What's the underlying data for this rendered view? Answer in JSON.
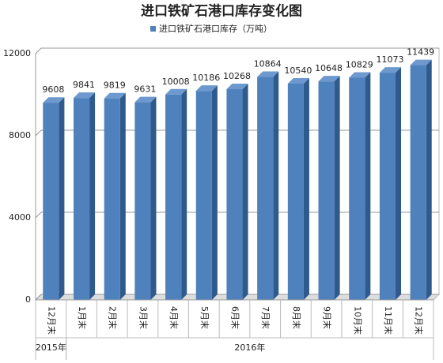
{
  "chart_data": {
    "type": "bar3d",
    "title": "进口铁矿石港口库存变化图",
    "categories": [
      "12月末",
      "1月末",
      "2月末",
      "3月末",
      "4月末",
      "5月末",
      "6月末",
      "7月末",
      "8月末",
      "9月末",
      "10月末",
      "11月末",
      "12月末"
    ],
    "x_groups": [
      {
        "label": "2015年",
        "span": 1
      },
      {
        "label": "2016年",
        "span": 12
      }
    ],
    "series": [
      {
        "name": "进口铁矿石港口库存（万吨）",
        "color": "#4f81bd",
        "values": [
          9608,
          9841,
          9819,
          9631,
          10008,
          10186,
          10268,
          10864,
          10540,
          10648,
          10829,
          11073,
          11439
        ]
      }
    ],
    "ylim": [
      0,
      12000
    ],
    "yticks": [
      0,
      4000,
      8000,
      12000
    ],
    "grid": true,
    "legend": "top"
  }
}
